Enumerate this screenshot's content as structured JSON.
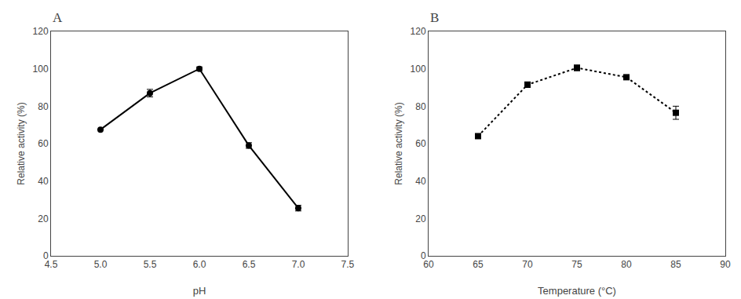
{
  "chart_data": [
    {
      "type": "line",
      "title": "A",
      "x": [
        5.0,
        5.5,
        6.0,
        6.5,
        7.0
      ],
      "values": [
        67.5,
        87.0,
        100.0,
        59.0,
        25.5
      ],
      "yerr": [
        0.0,
        2.0,
        1.0,
        1.5,
        1.5
      ],
      "xlabel": "pH",
      "ylabel": "Relative activity (%)",
      "xlim": [
        4.5,
        7.5
      ],
      "ylim": [
        0,
        120
      ],
      "xticks": [
        4.5,
        {
          "value": 5.0,
          "label": "5.0"
        },
        5.5,
        {
          "value": 6.0,
          "label": "6.0"
        },
        6.5,
        {
          "value": 7.0,
          "label": "7.0"
        },
        7.5
      ],
      "yticks": [
        0,
        20,
        40,
        60,
        80,
        100,
        120
      ],
      "line_style": "solid",
      "marker": "circle",
      "color": "black",
      "grid": false
    },
    {
      "type": "line",
      "title": "B",
      "x": [
        65,
        70,
        75,
        80,
        85
      ],
      "values": [
        64.0,
        91.5,
        100.5,
        95.5,
        76.5
      ],
      "yerr": [
        1.2,
        1.5,
        1.5,
        1.2,
        3.5
      ],
      "xlabel": "Temperature (°C)",
      "ylabel": "Relative activity (%)",
      "xlim": [
        60,
        90
      ],
      "ylim": [
        0,
        120
      ],
      "xticks": [
        60,
        65,
        70,
        75,
        80,
        85,
        90
      ],
      "yticks": [
        0,
        20,
        40,
        60,
        80,
        100,
        120
      ],
      "line_style": "dotted",
      "marker": "square",
      "color": "black",
      "grid": false
    }
  ]
}
